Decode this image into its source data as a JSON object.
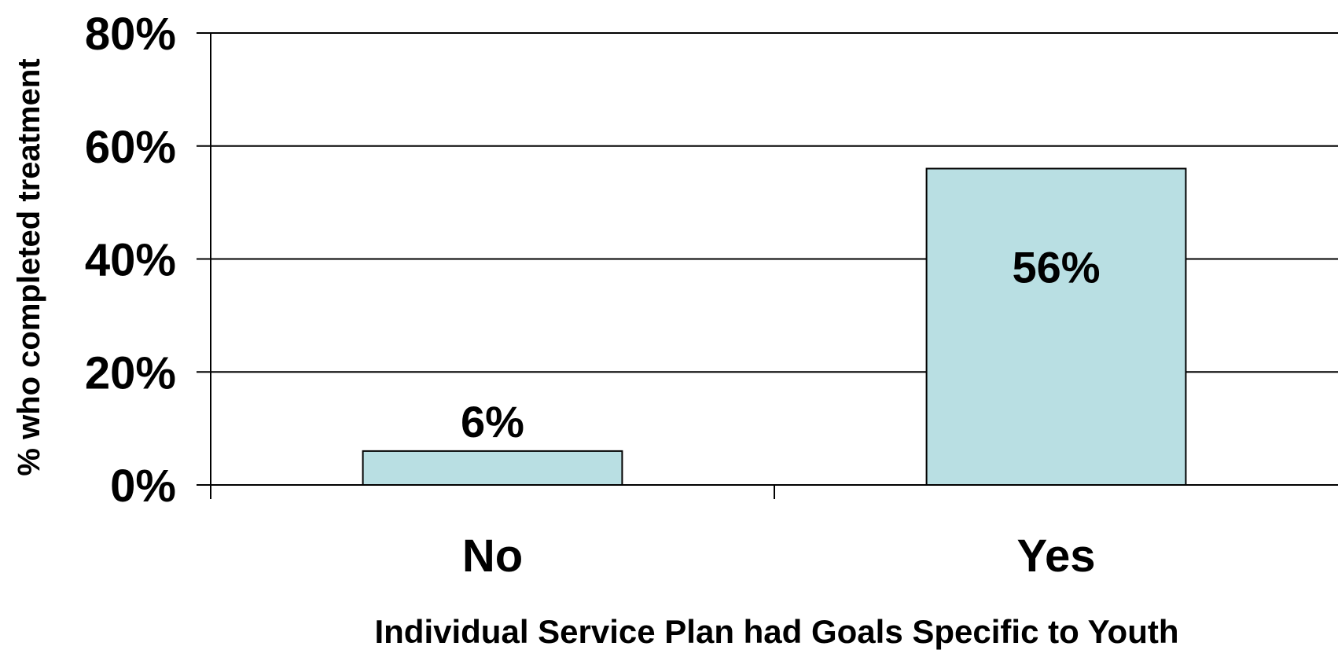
{
  "chart_data": {
    "type": "bar",
    "categories": [
      "No",
      "Yes"
    ],
    "values": [
      6,
      56
    ],
    "data_labels": [
      "6%",
      "56%"
    ],
    "xlabel": "Individual Service Plan had Goals Specific to Youth",
    "ylabel": "% who completed treatment",
    "ylim": [
      0,
      80
    ],
    "yticks": [
      0,
      20,
      40,
      60,
      80
    ],
    "ytick_labels": [
      "0%",
      "20%",
      "40%",
      "60%",
      "80%"
    ],
    "grid": true,
    "legend": "none",
    "colors": {
      "bar_fill": "#b9dfe3",
      "bar_stroke": "#000000",
      "grid": "#000000",
      "text": "#000000"
    }
  }
}
